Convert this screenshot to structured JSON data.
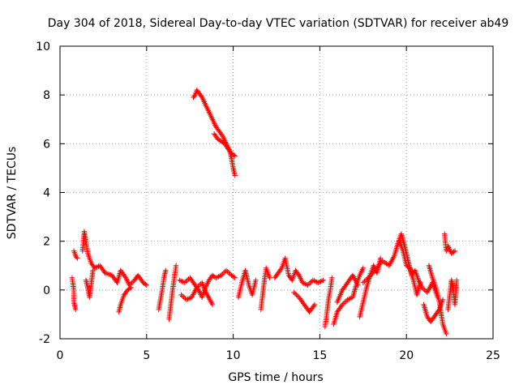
{
  "chart_data": {
    "type": "scatter",
    "title": "Day 304 of 2018, Sidereal Day-to-day VTEC variation (SDTVAR) for receiver ab49",
    "xlabel": "GPS time / hours",
    "ylabel": "SDTVAR / TECUs",
    "xlim": [
      0,
      25
    ],
    "ylim": [
      -2,
      10
    ],
    "xticks": [
      0,
      5,
      10,
      15,
      20,
      25
    ],
    "yticks": [
      -2,
      0,
      2,
      4,
      6,
      8,
      10
    ],
    "grid": true,
    "marker": "+",
    "series": [
      {
        "name": "SDTVAR",
        "color": "#ff0000",
        "segments": [
          [
            [
              0.8,
              1.6
            ],
            [
              0.9,
              1.4
            ],
            [
              1.0,
              1.3
            ]
          ],
          [
            [
              0.7,
              0.5
            ],
            [
              0.8,
              0.0
            ],
            [
              0.8,
              -0.5
            ],
            [
              0.9,
              -0.8
            ]
          ],
          [
            [
              1.3,
              1.6
            ],
            [
              1.4,
              2.4
            ],
            [
              1.5,
              2.0
            ],
            [
              1.6,
              1.5
            ],
            [
              1.8,
              1.1
            ],
            [
              2.0,
              0.9
            ],
            [
              2.3,
              1.0
            ],
            [
              2.6,
              0.7
            ],
            [
              3.0,
              0.6
            ],
            [
              3.3,
              0.3
            ],
            [
              3.5,
              0.8
            ],
            [
              3.8,
              0.5
            ],
            [
              4.0,
              0.2
            ],
            [
              4.3,
              0.4
            ],
            [
              4.5,
              0.6
            ],
            [
              4.8,
              0.3
            ],
            [
              5.0,
              0.2
            ]
          ],
          [
            [
              1.5,
              0.4
            ],
            [
              1.6,
              0.1
            ],
            [
              1.7,
              -0.3
            ],
            [
              1.8,
              0.2
            ],
            [
              1.9,
              0.8
            ]
          ],
          [
            [
              3.4,
              -0.9
            ],
            [
              3.5,
              -0.6
            ],
            [
              3.7,
              -0.2
            ],
            [
              3.9,
              0.0
            ],
            [
              4.1,
              0.1
            ]
          ],
          [
            [
              5.7,
              -0.8
            ],
            [
              5.8,
              -0.4
            ],
            [
              5.9,
              0.0
            ],
            [
              6.0,
              0.5
            ],
            [
              6.1,
              0.8
            ]
          ],
          [
            [
              6.3,
              -1.2
            ],
            [
              6.4,
              -0.6
            ],
            [
              6.5,
              0.0
            ],
            [
              6.6,
              0.5
            ],
            [
              6.7,
              1.0
            ]
          ],
          [
            [
              6.9,
              0.4
            ],
            [
              7.2,
              0.3
            ],
            [
              7.5,
              0.5
            ],
            [
              7.8,
              0.2
            ],
            [
              8.0,
              0.0
            ],
            [
              8.2,
              -0.3
            ],
            [
              8.4,
              0.1
            ],
            [
              8.6,
              0.4
            ],
            [
              8.8,
              0.6
            ],
            [
              9.0,
              0.5
            ],
            [
              9.3,
              0.6
            ],
            [
              9.6,
              0.8
            ],
            [
              9.9,
              0.6
            ],
            [
              10.1,
              0.5
            ]
          ],
          [
            [
              7.0,
              -0.2
            ],
            [
              7.3,
              -0.4
            ],
            [
              7.6,
              -0.3
            ],
            [
              7.9,
              0.1
            ],
            [
              8.2,
              0.3
            ],
            [
              8.5,
              -0.2
            ],
            [
              8.8,
              -0.6
            ]
          ],
          [
            [
              7.7,
              7.9
            ],
            [
              7.8,
              8.0
            ],
            [
              7.9,
              8.2
            ],
            [
              8.0,
              8.1
            ],
            [
              8.2,
              7.9
            ],
            [
              8.4,
              7.6
            ],
            [
              8.6,
              7.3
            ],
            [
              8.8,
              7.0
            ],
            [
              9.0,
              6.7
            ],
            [
              9.2,
              6.5
            ],
            [
              9.4,
              6.3
            ],
            [
              9.6,
              6.0
            ],
            [
              9.8,
              5.7
            ],
            [
              9.9,
              5.4
            ],
            [
              10.0,
              5.0
            ],
            [
              10.1,
              4.7
            ]
          ],
          [
            [
              8.9,
              6.4
            ],
            [
              9.1,
              6.2
            ],
            [
              9.3,
              6.1
            ],
            [
              9.5,
              6.0
            ],
            [
              9.7,
              5.8
            ],
            [
              9.9,
              5.6
            ],
            [
              10.1,
              5.5
            ]
          ],
          [
            [
              10.3,
              -0.3
            ],
            [
              10.5,
              0.3
            ],
            [
              10.7,
              0.8
            ],
            [
              10.9,
              0.2
            ],
            [
              11.1,
              -0.2
            ],
            [
              11.3,
              0.4
            ]
          ],
          [
            [
              11.6,
              -0.8
            ],
            [
              11.7,
              -0.2
            ],
            [
              11.8,
              0.4
            ],
            [
              11.9,
              0.9
            ],
            [
              12.1,
              0.5
            ]
          ],
          [
            [
              12.4,
              0.5
            ],
            [
              12.6,
              0.7
            ],
            [
              12.8,
              0.9
            ],
            [
              13.0,
              1.3
            ],
            [
              13.2,
              0.6
            ],
            [
              13.4,
              0.4
            ],
            [
              13.6,
              0.8
            ],
            [
              13.8,
              0.6
            ],
            [
              14.0,
              0.3
            ],
            [
              14.3,
              0.2
            ],
            [
              14.6,
              0.4
            ],
            [
              14.9,
              0.3
            ],
            [
              15.2,
              0.4
            ]
          ],
          [
            [
              13.5,
              -0.1
            ],
            [
              13.8,
              -0.3
            ],
            [
              14.1,
              -0.6
            ],
            [
              14.4,
              -0.9
            ],
            [
              14.7,
              -0.6
            ]
          ],
          [
            [
              15.3,
              -1.5
            ],
            [
              15.4,
              -1.0
            ],
            [
              15.5,
              -0.4
            ],
            [
              15.6,
              0.0
            ],
            [
              15.7,
              0.5
            ]
          ],
          [
            [
              15.8,
              -1.4
            ],
            [
              16.0,
              -0.9
            ],
            [
              16.3,
              -0.6
            ],
            [
              16.6,
              -0.4
            ],
            [
              16.9,
              -0.3
            ],
            [
              17.1,
              0.2
            ],
            [
              17.3,
              0.6
            ],
            [
              17.5,
              0.9
            ]
          ],
          [
            [
              16.0,
              -0.5
            ],
            [
              16.3,
              0.0
            ],
            [
              16.6,
              0.3
            ],
            [
              16.9,
              0.6
            ],
            [
              17.2,
              0.2
            ]
          ],
          [
            [
              17.3,
              -1.1
            ],
            [
              17.5,
              -0.5
            ],
            [
              17.7,
              0.1
            ],
            [
              17.9,
              0.6
            ],
            [
              18.1,
              1.0
            ],
            [
              18.3,
              0.7
            ],
            [
              18.5,
              1.3
            ]
          ],
          [
            [
              17.5,
              0.3
            ],
            [
              17.8,
              0.5
            ],
            [
              18.2,
              0.8
            ],
            [
              18.6,
              1.2
            ],
            [
              19.0,
              1.0
            ],
            [
              19.3,
              1.4
            ],
            [
              19.5,
              1.9
            ],
            [
              19.7,
              2.3
            ],
            [
              19.9,
              1.8
            ],
            [
              20.1,
              1.2
            ],
            [
              20.3,
              0.6
            ],
            [
              20.5,
              0.8
            ],
            [
              20.7,
              0.4
            ],
            [
              20.9,
              0.1
            ],
            [
              21.2,
              -0.1
            ],
            [
              21.5,
              0.3
            ],
            [
              21.8,
              -0.3
            ]
          ],
          [
            [
              19.6,
              2.0
            ],
            [
              19.8,
              1.6
            ],
            [
              20.0,
              1.0
            ],
            [
              20.2,
              0.9
            ],
            [
              20.4,
              0.4
            ],
            [
              20.6,
              -0.2
            ],
            [
              20.8,
              0.3
            ]
          ],
          [
            [
              21.0,
              -0.6
            ],
            [
              21.2,
              -1.1
            ],
            [
              21.4,
              -1.3
            ],
            [
              21.6,
              -1.1
            ],
            [
              21.9,
              -0.8
            ],
            [
              22.1,
              -0.4
            ]
          ],
          [
            [
              21.3,
              1.0
            ],
            [
              21.5,
              0.5
            ],
            [
              21.7,
              0.1
            ],
            [
              21.9,
              -0.5
            ],
            [
              22.1,
              -1.4
            ],
            [
              22.3,
              -1.8
            ]
          ],
          [
            [
              22.4,
              -0.8
            ],
            [
              22.5,
              -0.2
            ],
            [
              22.6,
              0.4
            ],
            [
              22.7,
              0.1
            ],
            [
              22.8,
              -0.6
            ],
            [
              22.9,
              0.4
            ]
          ],
          [
            [
              22.2,
              2.3
            ],
            [
              22.3,
              1.6
            ],
            [
              22.4,
              1.8
            ],
            [
              22.6,
              1.5
            ],
            [
              22.8,
              1.6
            ]
          ]
        ]
      }
    ]
  }
}
